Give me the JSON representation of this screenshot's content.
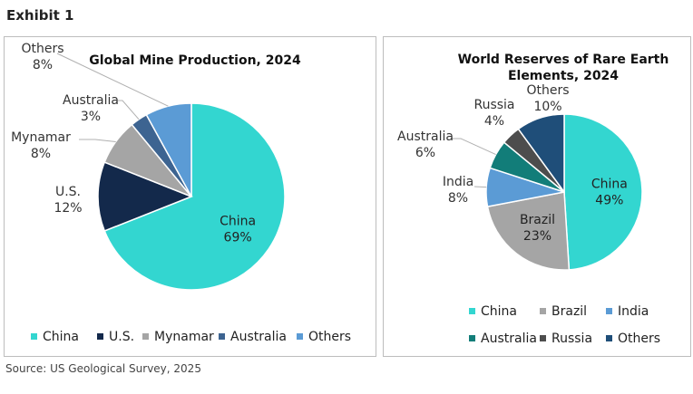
{
  "exhibit_label": "Exhibit 1",
  "source": "Source: US Geological Survey, 2025",
  "chart_data": [
    {
      "type": "pie",
      "title": "Global Mine Production, 2024",
      "categories": [
        "China",
        "U.S.",
        "Mynamar",
        "Australia",
        "Others"
      ],
      "values": [
        69,
        12,
        8,
        3,
        8
      ],
      "value_labels": [
        "69%",
        "12%",
        "8%",
        "3%",
        "8%"
      ],
      "colors": [
        "#33d6d0",
        "#13294b",
        "#a5a5a5",
        "#3d6491",
        "#5b9bd5"
      ],
      "legend_position": "bottom"
    },
    {
      "type": "pie",
      "title_lines": [
        "World Reserves of Rare Earth",
        "Elements, 2024"
      ],
      "categories": [
        "China",
        "Brazil",
        "India",
        "Australia",
        "Russia",
        "Others"
      ],
      "values": [
        49,
        23,
        8,
        6,
        4,
        10
      ],
      "value_labels": [
        "49%",
        "23%",
        "8%",
        "6%",
        "4%",
        "10%"
      ],
      "colors": [
        "#33d6d0",
        "#a5a5a5",
        "#5b9bd5",
        "#127d79",
        "#4d4d4d",
        "#1f4e79"
      ],
      "legend_position": "bottom"
    }
  ]
}
